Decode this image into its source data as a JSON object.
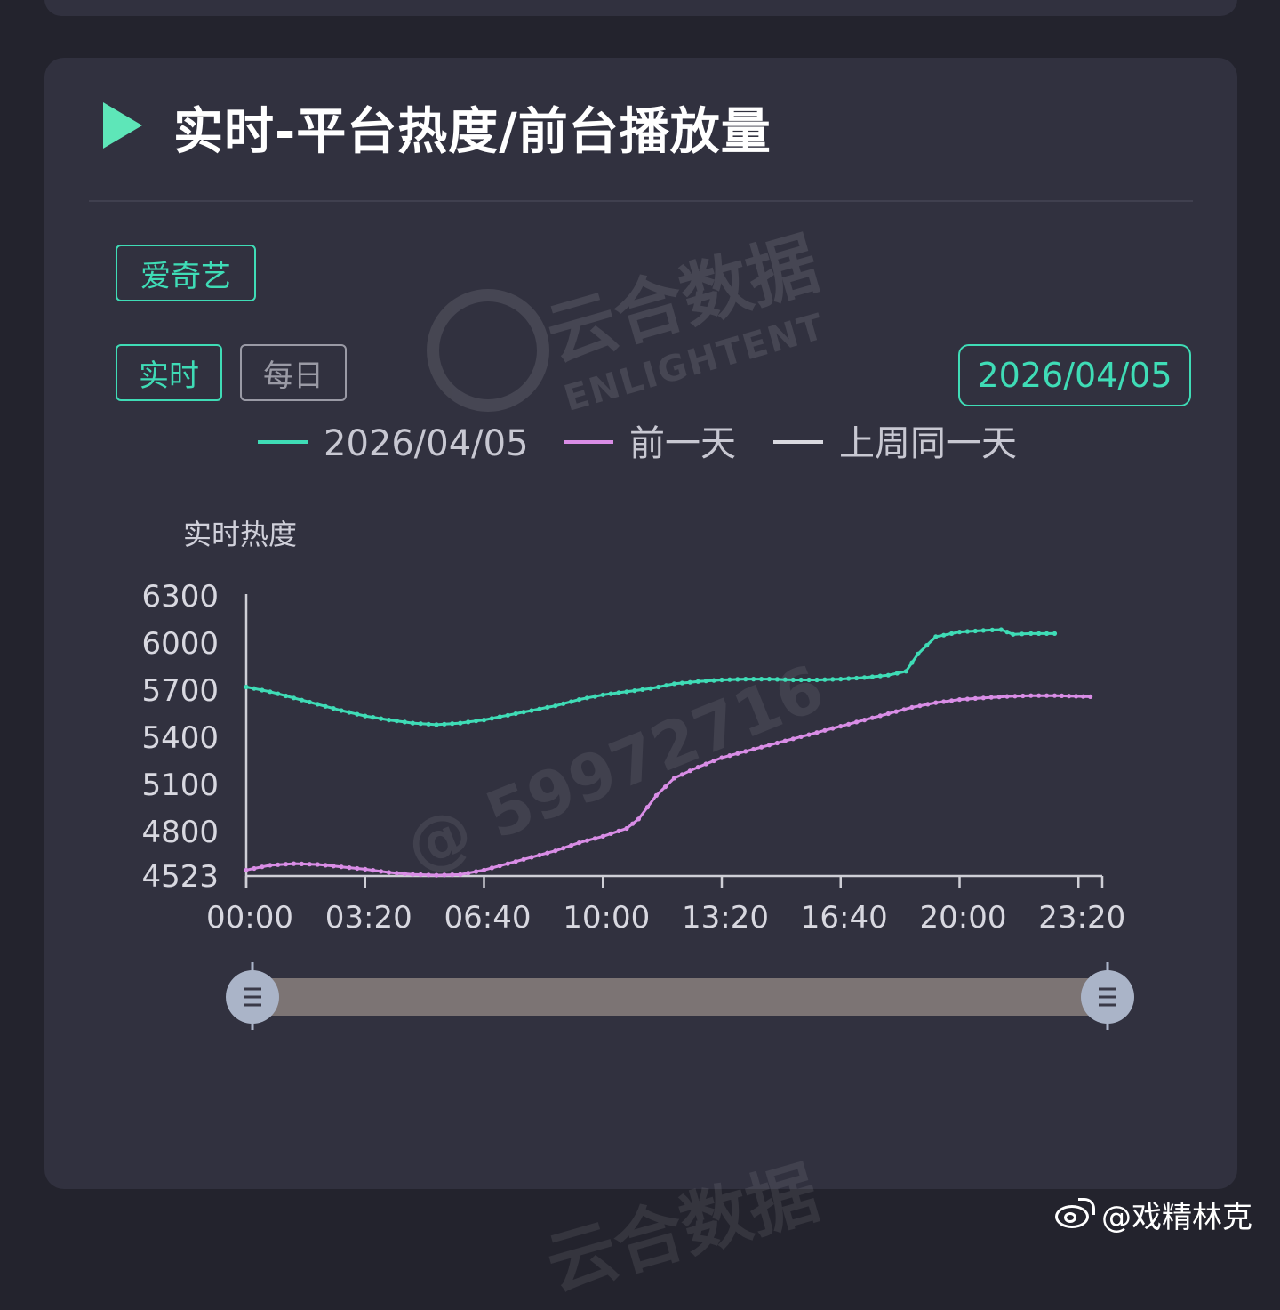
{
  "card": {
    "title": "实时-平台热度/前台播放量",
    "platform_tag": "爱奇艺",
    "mode_tabs": [
      "实时",
      "每日"
    ],
    "date": "2026/04/05"
  },
  "watermarks": {
    "brand_cn": "云合数据",
    "brand_en": "ENLIGHTENT",
    "user_id": "@ 59972716"
  },
  "footer": {
    "weibo_handle": "@戏精林克"
  },
  "colors": {
    "accent": "#3fdcb6",
    "series_today": "#3fdcb6",
    "series_prev_day": "#d98de6",
    "series_last_week": "#d9d9e0",
    "slider_track": "#7c7474",
    "slider_handle": "#aab4c8"
  },
  "chart_data": {
    "type": "line",
    "ylabel": "实时热度",
    "xlabel": "",
    "ylim": [
      4523,
      6300
    ],
    "yticks": [
      6300,
      6000,
      5700,
      5400,
      5100,
      4800,
      4523
    ],
    "xticks": [
      "00:00",
      "03:20",
      "06:40",
      "10:00",
      "13:20",
      "16:40",
      "20:00",
      "23:20"
    ],
    "x_range_minutes": [
      0,
      1440
    ],
    "legend": [
      "2026/04/05",
      "前一天",
      "上周同一天"
    ],
    "legend_position": "top",
    "grid": false,
    "series": [
      {
        "name": "2026/04/05",
        "points": [
          [
            0,
            5720
          ],
          [
            40,
            5690
          ],
          [
            80,
            5650
          ],
          [
            120,
            5610
          ],
          [
            160,
            5570
          ],
          [
            200,
            5535
          ],
          [
            240,
            5510
          ],
          [
            280,
            5490
          ],
          [
            320,
            5480
          ],
          [
            360,
            5490
          ],
          [
            400,
            5510
          ],
          [
            440,
            5540
          ],
          [
            480,
            5570
          ],
          [
            520,
            5600
          ],
          [
            560,
            5640
          ],
          [
            600,
            5670
          ],
          [
            640,
            5690
          ],
          [
            680,
            5710
          ],
          [
            720,
            5740
          ],
          [
            760,
            5755
          ],
          [
            800,
            5765
          ],
          [
            840,
            5770
          ],
          [
            880,
            5770
          ],
          [
            920,
            5765
          ],
          [
            960,
            5765
          ],
          [
            1000,
            5770
          ],
          [
            1040,
            5780
          ],
          [
            1080,
            5795
          ],
          [
            1110,
            5820
          ],
          [
            1130,
            5930
          ],
          [
            1160,
            6040
          ],
          [
            1200,
            6070
          ],
          [
            1240,
            6080
          ],
          [
            1270,
            6085
          ],
          [
            1290,
            6055
          ],
          [
            1320,
            6060
          ],
          [
            1360,
            6060
          ]
        ]
      },
      {
        "name": "前一天",
        "points": [
          [
            0,
            4560
          ],
          [
            40,
            4590
          ],
          [
            80,
            4600
          ],
          [
            120,
            4595
          ],
          [
            160,
            4580
          ],
          [
            200,
            4565
          ],
          [
            240,
            4545
          ],
          [
            280,
            4533
          ],
          [
            320,
            4528
          ],
          [
            360,
            4532
          ],
          [
            400,
            4560
          ],
          [
            440,
            4600
          ],
          [
            480,
            4640
          ],
          [
            520,
            4680
          ],
          [
            560,
            4730
          ],
          [
            600,
            4770
          ],
          [
            640,
            4820
          ],
          [
            660,
            4880
          ],
          [
            690,
            5030
          ],
          [
            720,
            5140
          ],
          [
            760,
            5210
          ],
          [
            800,
            5270
          ],
          [
            840,
            5310
          ],
          [
            880,
            5350
          ],
          [
            920,
            5390
          ],
          [
            960,
            5430
          ],
          [
            1000,
            5470
          ],
          [
            1040,
            5510
          ],
          [
            1080,
            5550
          ],
          [
            1120,
            5590
          ],
          [
            1160,
            5620
          ],
          [
            1200,
            5640
          ],
          [
            1240,
            5650
          ],
          [
            1280,
            5660
          ],
          [
            1320,
            5665
          ],
          [
            1360,
            5665
          ],
          [
            1420,
            5658
          ]
        ]
      }
    ]
  }
}
